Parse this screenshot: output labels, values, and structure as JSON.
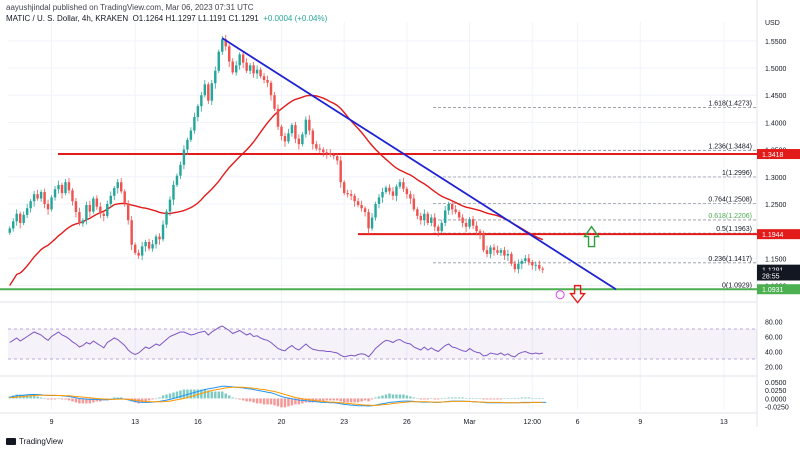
{
  "publisher_line": "aayushjindal published on TradingView.com, Mar 06, 2023 07:31 UTC",
  "symbol_info": {
    "symbol": "MATIC / U. S. Dollar, 4h, KRAKEN",
    "ohlc": "O1.1264 H1.1297 L1.1191 C1.1291",
    "change": "+0.0004 (+0.04%)"
  },
  "footer_brand": "TradingView",
  "colors": {
    "up": "#26a69a",
    "down": "#ef5350",
    "trendline": "#1e22d4",
    "horizontal_lines": "#e31a1a",
    "ma_line": "#e31a1a",
    "support_line": "#4caf50",
    "rsi_line": "#7e57c2",
    "macd_line": "#2196f3",
    "signal_line": "#ff9800",
    "arrow_up": "#2e9e3a",
    "arrow_down": "#e31a1a"
  },
  "chart_data": {
    "type": "candlestick",
    "currency_label": "USD",
    "price_ticks": [
      "1.5500",
      "1.5000",
      "1.4500",
      "1.4000",
      "1.3500",
      "1.3000",
      "1.2500",
      "1.1500",
      "1.1000"
    ],
    "ylim": [
      1.088,
      1.57
    ],
    "x_labels": [
      "9",
      "13",
      "16",
      "20",
      "23",
      "26",
      "Mar",
      "12:00",
      "6",
      "9",
      "13"
    ],
    "x_label_index": [
      12,
      36,
      54,
      78,
      96,
      114,
      132,
      150,
      163,
      181,
      205
    ],
    "closes": [
      1.205,
      1.218,
      1.232,
      1.215,
      1.23,
      1.242,
      1.255,
      1.268,
      1.26,
      1.272,
      1.25,
      1.24,
      1.262,
      1.277,
      1.285,
      1.27,
      1.29,
      1.275,
      1.255,
      1.235,
      1.214,
      1.22,
      1.248,
      1.236,
      1.26,
      1.245,
      1.232,
      1.228,
      1.25,
      1.265,
      1.279,
      1.29,
      1.273,
      1.251,
      1.22,
      1.175,
      1.16,
      1.155,
      1.172,
      1.18,
      1.168,
      1.176,
      1.19,
      1.185,
      1.212,
      1.236,
      1.258,
      1.285,
      1.302,
      1.322,
      1.35,
      1.368,
      1.385,
      1.41,
      1.43,
      1.45,
      1.47,
      1.44,
      1.472,
      1.495,
      1.53,
      1.553,
      1.54,
      1.512,
      1.492,
      1.505,
      1.525,
      1.51,
      1.495,
      1.505,
      1.49,
      1.497,
      1.485,
      1.478,
      1.473,
      1.45,
      1.425,
      1.392,
      1.375,
      1.365,
      1.38,
      1.395,
      1.37,
      1.36,
      1.378,
      1.405,
      1.385,
      1.36,
      1.352,
      1.35,
      1.345,
      1.343,
      1.34,
      1.338,
      1.33,
      1.29,
      1.27,
      1.268,
      1.265,
      1.255,
      1.248,
      1.242,
      1.235,
      1.205,
      1.225,
      1.25,
      1.262,
      1.272,
      1.28,
      1.273,
      1.265,
      1.282,
      1.29,
      1.278,
      1.268,
      1.26,
      1.24,
      1.228,
      1.22,
      1.232,
      1.215,
      1.225,
      1.208,
      1.2,
      1.215,
      1.238,
      1.25,
      1.24,
      1.235,
      1.225,
      1.215,
      1.208,
      1.222,
      1.21,
      1.2,
      1.195,
      1.165,
      1.158,
      1.17,
      1.165,
      1.16,
      1.165,
      1.155,
      1.158,
      1.14,
      1.13,
      1.14,
      1.145,
      1.15,
      1.143,
      1.137,
      1.138,
      1.131,
      1.129
    ],
    "annotations": {
      "resistance_1": 1.3418,
      "resistance_2": 1.1944,
      "support": 1.0931,
      "last_price": "1.1291",
      "countdown": "28:55"
    },
    "fib_levels": [
      {
        "label": "1.618(1.4273)",
        "value": 1.4273
      },
      {
        "label": "1.236(1.3484)",
        "value": 1.3484
      },
      {
        "label": "1(1.2996)",
        "value": 1.2996
      },
      {
        "label": "0.764(1.2508)",
        "value": 1.2508
      },
      {
        "label": "0.618(1.2206)",
        "value": 1.2206
      },
      {
        "label": "0.5(1.1963)",
        "value": 1.1963
      },
      {
        "label": "0.236(1.1417)",
        "value": 1.1417
      },
      {
        "label": "0(1.0929)",
        "value": 1.0929
      }
    ],
    "price_badges": [
      {
        "text": "1.3418",
        "value": 1.3418,
        "color": "#e31a1a"
      },
      {
        "text": "1.1944",
        "value": 1.1944,
        "color": "#e31a1a"
      },
      {
        "text": "1.1291",
        "value": 1.1291,
        "color": "#131722"
      },
      {
        "text": "28:55",
        "value": 1.1183,
        "color": "#131722"
      },
      {
        "text": "1.0931",
        "value": 1.0931,
        "color": "#4caf50"
      }
    ],
    "rsi": {
      "ticks": [
        "80.00",
        "60.00",
        "40.00",
        "20.00"
      ],
      "tick_values": [
        80,
        60,
        40,
        20
      ],
      "values": [
        52,
        55,
        58,
        54,
        57,
        60,
        63,
        66,
        64,
        62,
        58,
        55,
        60,
        63,
        66,
        62,
        60,
        57,
        53,
        50,
        46,
        48,
        52,
        50,
        54,
        51,
        48,
        45,
        52,
        55,
        58,
        56,
        52,
        48,
        42,
        38,
        36,
        38,
        42,
        46,
        44,
        47,
        50,
        48,
        52,
        56,
        60,
        62,
        64,
        66,
        66,
        64,
        62,
        63,
        65,
        66,
        67,
        62,
        66,
        69,
        72,
        74,
        71,
        68,
        64,
        66,
        68,
        65,
        62,
        64,
        60,
        61,
        58,
        56,
        55,
        52,
        48,
        44,
        42,
        41,
        45,
        48,
        44,
        42,
        46,
        50,
        46,
        43,
        42,
        41,
        41,
        40,
        40,
        39,
        38,
        35,
        33,
        34,
        35,
        34,
        36,
        37,
        36,
        33,
        38,
        44,
        48,
        52,
        55,
        54,
        52,
        55,
        56,
        53,
        51,
        50,
        46,
        44,
        42,
        46,
        42,
        45,
        42,
        40,
        44,
        48,
        50,
        46,
        45,
        43,
        41,
        40,
        44,
        41,
        39,
        38,
        34,
        35,
        38,
        37,
        36,
        38,
        35,
        37,
        34,
        33,
        37,
        39,
        40,
        38,
        37,
        38,
        37,
        38
      ],
      "band": [
        30,
        70
      ]
    },
    "macd": {
      "ticks": [
        "0.0500",
        "0.0250",
        "0.0000",
        "-0.0250"
      ],
      "tick_values": [
        0.05,
        0.025,
        0,
        -0.025
      ],
      "ylim": [
        -0.035,
        0.062
      ],
      "macd": [
        0.004,
        0.006,
        0.008,
        0.009,
        0.01,
        0.011,
        0.012,
        0.012,
        0.012,
        0.011,
        0.01,
        0.009,
        0.009,
        0.009,
        0.009,
        0.008,
        0.007,
        0.006,
        0.004,
        0.002,
        0.0,
        -0.001,
        -0.002,
        -0.003,
        -0.003,
        -0.003,
        -0.004,
        -0.004,
        -0.004,
        -0.003,
        -0.002,
        -0.001,
        -0.001,
        -0.002,
        -0.004,
        -0.007,
        -0.009,
        -0.011,
        -0.012,
        -0.012,
        -0.012,
        -0.011,
        -0.01,
        -0.009,
        -0.007,
        -0.005,
        -0.003,
        0.0,
        0.003,
        0.006,
        0.009,
        0.012,
        0.015,
        0.018,
        0.021,
        0.024,
        0.027,
        0.029,
        0.031,
        0.033,
        0.035,
        0.037,
        0.037,
        0.036,
        0.035,
        0.034,
        0.033,
        0.032,
        0.03,
        0.029,
        0.027,
        0.025,
        0.023,
        0.021,
        0.019,
        0.017,
        0.014,
        0.01,
        0.006,
        0.003,
        0.001,
        -0.001,
        -0.003,
        -0.005,
        -0.006,
        -0.007,
        -0.008,
        -0.009,
        -0.01,
        -0.011,
        -0.012,
        -0.012,
        -0.013,
        -0.013,
        -0.014,
        -0.016,
        -0.018,
        -0.019,
        -0.02,
        -0.021,
        -0.022,
        -0.022,
        -0.022,
        -0.023,
        -0.022,
        -0.02,
        -0.018,
        -0.016,
        -0.014,
        -0.012,
        -0.011,
        -0.01,
        -0.009,
        -0.008,
        -0.008,
        -0.008,
        -0.009,
        -0.01,
        -0.011,
        -0.011,
        -0.011,
        -0.011,
        -0.012,
        -0.012,
        -0.011,
        -0.01,
        -0.009,
        -0.008,
        -0.008,
        -0.008,
        -0.008,
        -0.009,
        -0.009,
        -0.01,
        -0.01,
        -0.011,
        -0.012,
        -0.013,
        -0.013,
        -0.013,
        -0.013,
        -0.013,
        -0.013,
        -0.013,
        -0.013,
        -0.013,
        -0.013,
        -0.012,
        -0.012,
        -0.012,
        -0.012,
        -0.012,
        -0.012,
        -0.012,
        -0.012
      ],
      "signal": [
        0.002,
        0.003,
        0.004,
        0.005,
        0.006,
        0.007,
        0.008,
        0.009,
        0.01,
        0.01,
        0.01,
        0.01,
        0.01,
        0.01,
        0.009,
        0.009,
        0.008,
        0.008,
        0.007,
        0.006,
        0.005,
        0.004,
        0.003,
        0.002,
        0.001,
        0.0,
        -0.001,
        -0.002,
        -0.002,
        -0.003,
        -0.003,
        -0.002,
        -0.002,
        -0.002,
        -0.003,
        -0.004,
        -0.005,
        -0.006,
        -0.008,
        -0.009,
        -0.01,
        -0.01,
        -0.01,
        -0.01,
        -0.01,
        -0.009,
        -0.008,
        -0.006,
        -0.004,
        -0.002,
        0.0,
        0.003,
        0.006,
        0.009,
        0.012,
        0.015,
        0.018,
        0.021,
        0.024,
        0.026,
        0.028,
        0.03,
        0.032,
        0.033,
        0.034,
        0.034,
        0.034,
        0.034,
        0.033,
        0.032,
        0.031,
        0.03,
        0.028,
        0.027,
        0.025,
        0.023,
        0.021,
        0.018,
        0.015,
        0.012,
        0.009,
        0.006,
        0.003,
        0.001,
        -0.001,
        -0.003,
        -0.004,
        -0.005,
        -0.007,
        -0.008,
        -0.009,
        -0.01,
        -0.011,
        -0.011,
        -0.012,
        -0.013,
        -0.014,
        -0.015,
        -0.016,
        -0.017,
        -0.018,
        -0.019,
        -0.02,
        -0.02,
        -0.021,
        -0.021,
        -0.02,
        -0.019,
        -0.018,
        -0.017,
        -0.015,
        -0.014,
        -0.013,
        -0.012,
        -0.011,
        -0.01,
        -0.01,
        -0.01,
        -0.01,
        -0.01,
        -0.01,
        -0.011,
        -0.011,
        -0.011,
        -0.011,
        -0.01,
        -0.01,
        -0.009,
        -0.009,
        -0.009,
        -0.009,
        -0.009,
        -0.009,
        -0.01,
        -0.01,
        -0.011,
        -0.011,
        -0.012,
        -0.012,
        -0.012,
        -0.012,
        -0.012,
        -0.013,
        -0.013,
        -0.013,
        -0.013,
        -0.013,
        -0.013,
        -0.013,
        -0.013,
        -0.012,
        -0.012,
        -0.012,
        -0.012
      ]
    }
  }
}
